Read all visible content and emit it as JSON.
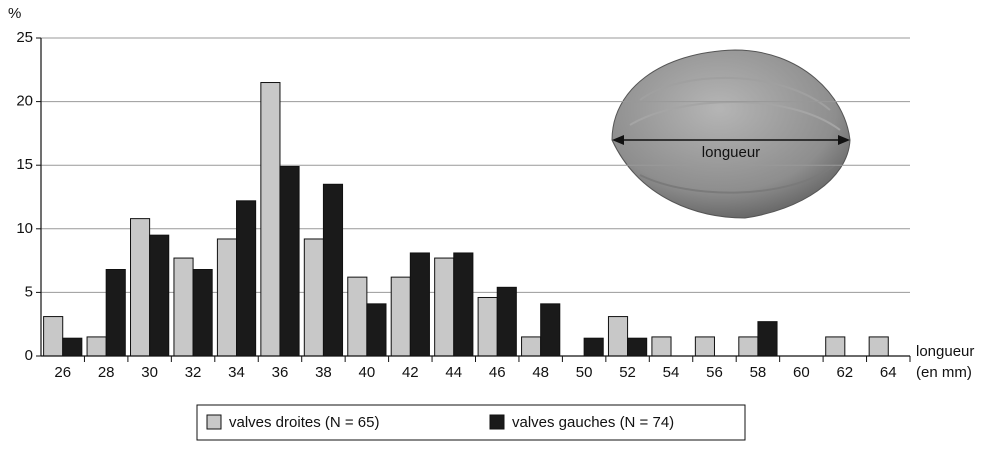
{
  "chart_data": {
    "type": "bar",
    "ylabel": "%",
    "xlabel": "longueur",
    "xlabel_unit": "(en mm)",
    "annotation": "longueur",
    "categories": [
      "26",
      "28",
      "30",
      "32",
      "34",
      "36",
      "38",
      "40",
      "42",
      "44",
      "46",
      "48",
      "50",
      "52",
      "54",
      "56",
      "58",
      "60",
      "62",
      "64"
    ],
    "series": [
      {
        "name": "valves droites (N = 65)",
        "color": "#c8c8c8",
        "values": [
          3.1,
          1.5,
          10.8,
          7.7,
          9.2,
          21.5,
          9.2,
          6.2,
          6.2,
          7.7,
          4.6,
          1.5,
          0,
          3.1,
          1.5,
          1.5,
          1.5,
          0,
          1.5,
          1.5
        ]
      },
      {
        "name": "valves gauches (N = 74)",
        "color": "#1a1a1a",
        "values": [
          1.4,
          6.8,
          9.5,
          6.8,
          12.2,
          14.9,
          13.5,
          4.1,
          8.1,
          8.1,
          5.4,
          4.1,
          1.4,
          1.4,
          0,
          0,
          2.7,
          0,
          0,
          0
        ]
      }
    ],
    "ylim": [
      0,
      25
    ],
    "yticks": [
      0,
      5,
      10,
      15,
      20,
      25
    ],
    "grid": true
  }
}
